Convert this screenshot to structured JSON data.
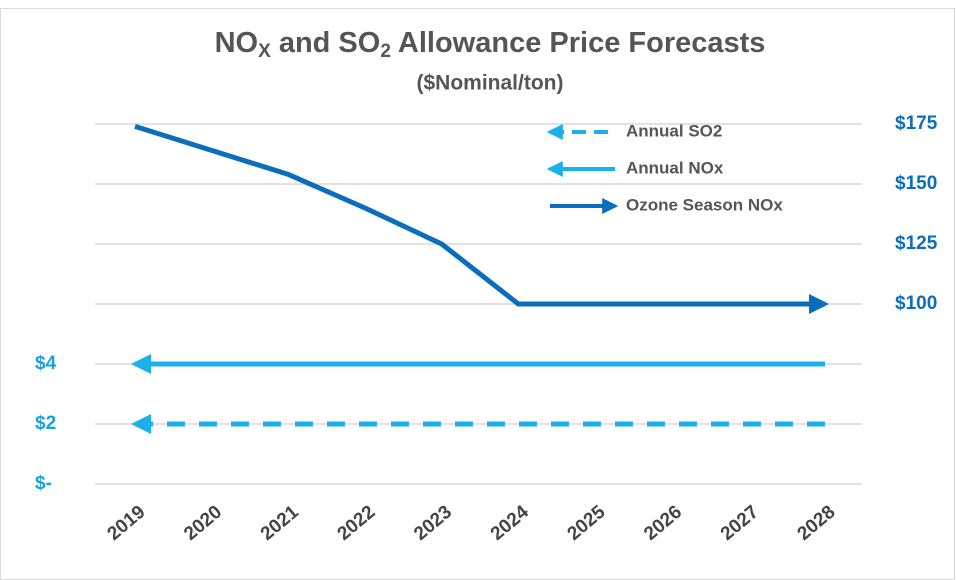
{
  "chart_data": {
    "type": "line",
    "title": [
      "NO",
      "X",
      " and SO",
      "2",
      " Allowance Price Forecasts"
    ],
    "subtitle": "($Nominal/ton)",
    "categories": [
      "2019",
      "2020",
      "2021",
      "2022",
      "2023",
      "2024",
      "2025",
      "2026",
      "2027",
      "2028"
    ],
    "series": [
      {
        "name": "Annual SO2",
        "color": "#1ab0ea",
        "dashed": true,
        "values": [
          2,
          2,
          2,
          2,
          2,
          2,
          2,
          2,
          2,
          2
        ]
      },
      {
        "name": "Annual NOx",
        "color": "#1ab0ea",
        "values": [
          4,
          4,
          4,
          4,
          4,
          4,
          4,
          4,
          4,
          4
        ]
      },
      {
        "name": "Ozone Season NOx",
        "color": "#0a6ebd",
        "axis": "y2",
        "values": [
          174,
          164,
          154,
          140,
          125,
          100,
          100,
          100,
          100,
          100
        ]
      }
    ],
    "ylim": [
      0,
      12
    ],
    "yticks": [
      {
        "value": 0,
        "label": "$-"
      },
      {
        "value": 2,
        "label": "$2"
      },
      {
        "value": 4,
        "label": "$4"
      }
    ],
    "y2lim": [
      25,
      175
    ],
    "y2ticks": [
      {
        "value": 100,
        "label": "$100"
      },
      {
        "value": 125,
        "label": "$125"
      },
      {
        "value": 150,
        "label": "$150"
      },
      {
        "value": 175,
        "label": "$175"
      }
    ],
    "grid": true,
    "legend": "top-right"
  }
}
